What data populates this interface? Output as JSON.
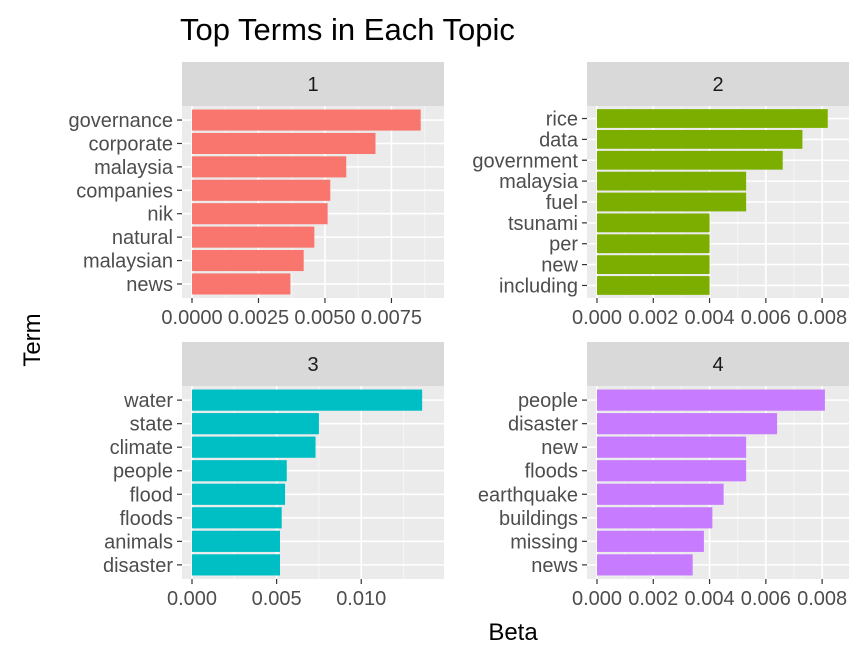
{
  "chart_data": {
    "type": "bar",
    "title": "Top Terms in Each Topic",
    "xlabel": "Beta",
    "ylabel": "Term",
    "orientation": "horizontal",
    "grid": true,
    "panels": [
      {
        "strip": "1",
        "color": "#F8766D",
        "xlim": [
          0,
          0.0091
        ],
        "ticks": [
          0,
          0.0025,
          0.005,
          0.0075
        ],
        "tick_labels": [
          "0.0000",
          "0.0025",
          "0.0050",
          "0.0075"
        ],
        "terms": [
          "governance",
          "corporate",
          "malaysia",
          "companies",
          "nik",
          "natural",
          "malaysian",
          "news"
        ],
        "values": [
          0.0086,
          0.0069,
          0.0058,
          0.0052,
          0.0051,
          0.0046,
          0.0042,
          0.0037
        ]
      },
      {
        "strip": "2",
        "color": "#7CAE00",
        "xlim": [
          0,
          0.0086
        ],
        "ticks": [
          0,
          0.002,
          0.004,
          0.006,
          0.008
        ],
        "tick_labels": [
          "0.000",
          "0.002",
          "0.004",
          "0.006",
          "0.008"
        ],
        "terms": [
          "rice",
          "data",
          "government",
          "malaysia",
          "fuel",
          "tsunami",
          "per",
          "new",
          "including"
        ],
        "values": [
          0.0082,
          0.0073,
          0.0066,
          0.0053,
          0.0053,
          0.004,
          0.004,
          0.004,
          0.004
        ]
      },
      {
        "strip": "3",
        "color": "#00BFC4",
        "xlim": [
          0,
          0.0143
        ],
        "ticks": [
          0,
          0.005,
          0.01
        ],
        "tick_labels": [
          "0.000",
          "0.005",
          "0.010"
        ],
        "terms": [
          "water",
          "state",
          "climate",
          "people",
          "flood",
          "floods",
          "animals",
          "disaster"
        ],
        "values": [
          0.0136,
          0.0075,
          0.0073,
          0.0056,
          0.0055,
          0.0053,
          0.0052,
          0.0052
        ]
      },
      {
        "strip": "4",
        "color": "#C77CFF",
        "xlim": [
          0,
          0.0086
        ],
        "ticks": [
          0,
          0.002,
          0.004,
          0.006,
          0.008
        ],
        "tick_labels": [
          "0.000",
          "0.002",
          "0.004",
          "0.006",
          "0.008"
        ],
        "terms": [
          "people",
          "disaster",
          "new",
          "floods",
          "earthquake",
          "buildings",
          "missing",
          "news"
        ],
        "values": [
          0.0081,
          0.0064,
          0.0053,
          0.0053,
          0.0045,
          0.0041,
          0.0038,
          0.0034
        ]
      }
    ]
  }
}
